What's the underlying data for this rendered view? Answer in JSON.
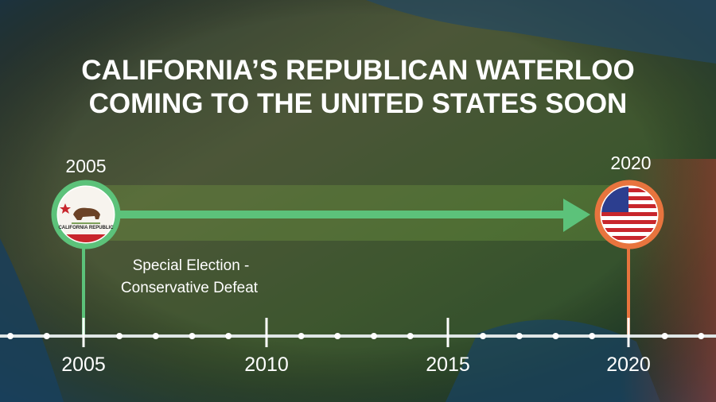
{
  "title": {
    "lines": [
      "CALIFORNIA’S REPUBLICAN WATERLOO",
      "COMING TO THE UNITED STATES SOON"
    ]
  },
  "start": {
    "year": "2005",
    "flag_text": "CALIFORNIA REPUBLIC",
    "caption": [
      "Special Election -",
      "Conservative Defeat"
    ]
  },
  "end": {
    "year": "2020"
  },
  "axis": {
    "labels": [
      "2005",
      "2010",
      "2015",
      "2020"
    ]
  }
}
